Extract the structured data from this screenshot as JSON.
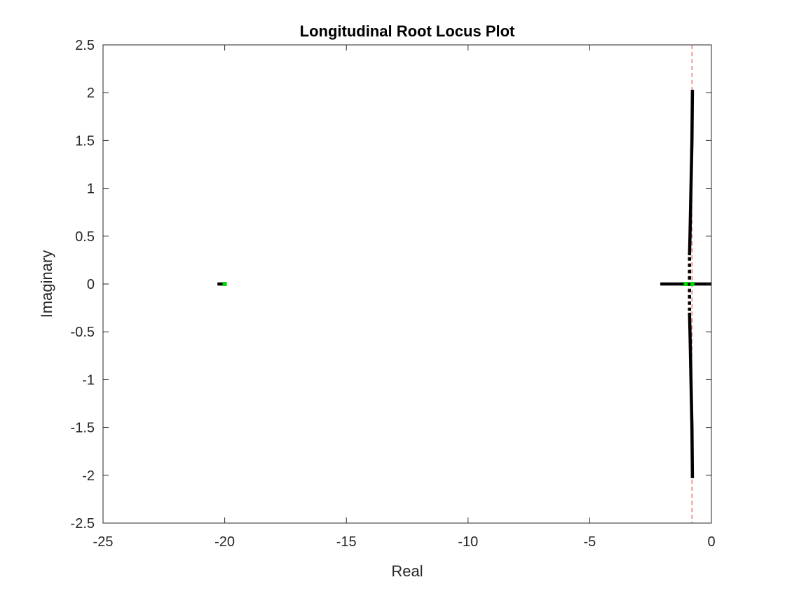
{
  "chart_data": {
    "type": "scatter",
    "title": "Longitudinal Root Locus Plot",
    "xlabel": "Real",
    "ylabel": "Imaginary",
    "xlim": [
      -25,
      0
    ],
    "ylim": [
      -2.5,
      2.5
    ],
    "xticks": [
      -25,
      -20,
      -15,
      -10,
      -5,
      0
    ],
    "yticks": [
      -2.5,
      -2,
      -1.5,
      -1,
      -0.5,
      0,
      0.5,
      1,
      1.5,
      2,
      2.5
    ],
    "xtick_labels": [
      "-25",
      "-20",
      "-15",
      "-10",
      "-5",
      "0"
    ],
    "ytick_labels": [
      "-2.5",
      "-2",
      "-1.5",
      "-1",
      "-0.5",
      "0",
      "0.5",
      "1",
      "1.5",
      "2",
      "2.5"
    ],
    "grid": false,
    "box": true,
    "series": [
      {
        "kind": "locus",
        "color": "#000000",
        "segments": [
          [
            [
              -0.78,
              2.03
            ],
            [
              -0.8,
              1.5
            ],
            [
              -0.84,
              1.0
            ],
            [
              -0.88,
              0.5
            ],
            [
              -0.9,
              0.3
            ]
          ],
          [
            [
              -0.78,
              -2.03
            ],
            [
              -0.8,
              -1.5
            ],
            [
              -0.84,
              -1.0
            ],
            [
              -0.88,
              -0.5
            ],
            [
              -0.9,
              -0.3
            ]
          ],
          [
            [
              -2.1,
              0
            ],
            [
              -1.0,
              0
            ]
          ],
          [
            [
              -0.75,
              0
            ],
            [
              0,
              0
            ]
          ],
          [
            [
              -20.3,
              0
            ],
            [
              -19.95,
              0
            ]
          ]
        ],
        "dotted_segments": [
          [
            [
              -0.9,
              0.28
            ],
            [
              -0.9,
              -0.28
            ]
          ]
        ]
      },
      {
        "kind": "markers",
        "color": "#00dd00",
        "points": [
          [
            -1.05,
            0
          ],
          [
            -0.78,
            0
          ],
          [
            -20.0,
            0
          ]
        ]
      }
    ],
    "reference_line": {
      "x": -0.8,
      "color": "#e03030",
      "style": "dashed"
    }
  }
}
